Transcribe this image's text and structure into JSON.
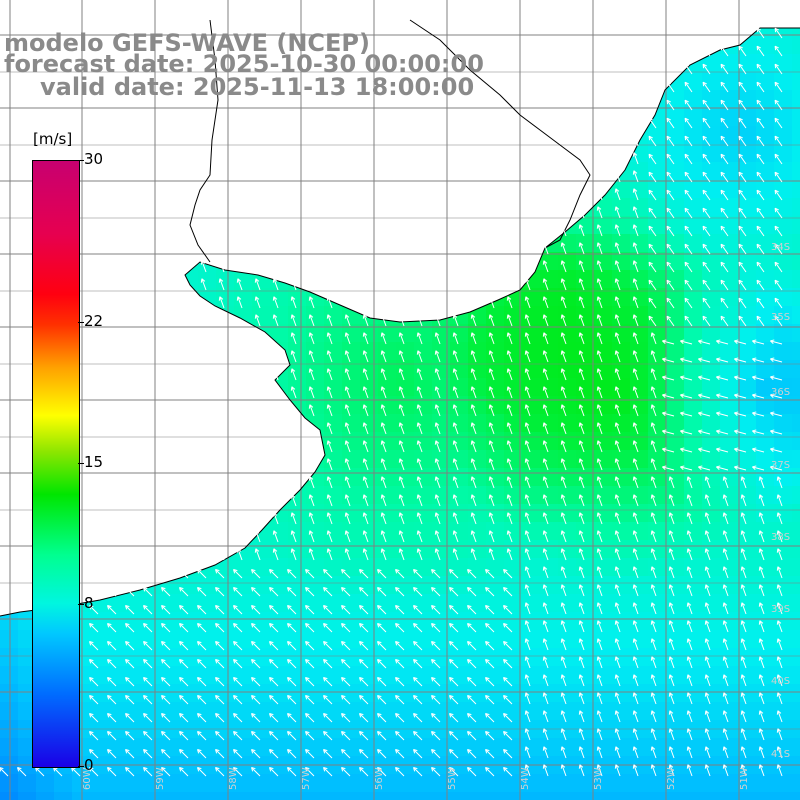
{
  "title": {
    "line1": "modelo GEFS-WAVE (NCEP)",
    "line2": "forecast date: 2025-10-30 00:00:00",
    "line3": "valid date: 2025-11-13 18:00:00"
  },
  "colorbar": {
    "unit": "[m/s]",
    "min": 0,
    "max": 30,
    "ticks": [
      "30",
      "22",
      "15",
      "8",
      "0"
    ],
    "tick_values": [
      30,
      22,
      15,
      8,
      0
    ],
    "colors": [
      "#1a00e6",
      "#006cff",
      "#00c8ff",
      "#00f6e0",
      "#00ff90",
      "#00e600",
      "#8ce600",
      "#ffff00",
      "#ffa000",
      "#ff3000",
      "#ff0010",
      "#e60050",
      "#c80070"
    ]
  },
  "map": {
    "land_color": "#ffffff",
    "coast_color": "#000000",
    "grid_color": "#808080",
    "arrow_color": "#ffffff",
    "lon_labels": [
      "60W",
      "59W",
      "58W",
      "57W",
      "56W",
      "55W",
      "54W",
      "53W",
      "52W",
      "51W"
    ],
    "lat_labels": [
      "34S",
      "35S",
      "36S",
      "37S",
      "38S",
      "39S",
      "40S",
      "41S"
    ]
  }
}
